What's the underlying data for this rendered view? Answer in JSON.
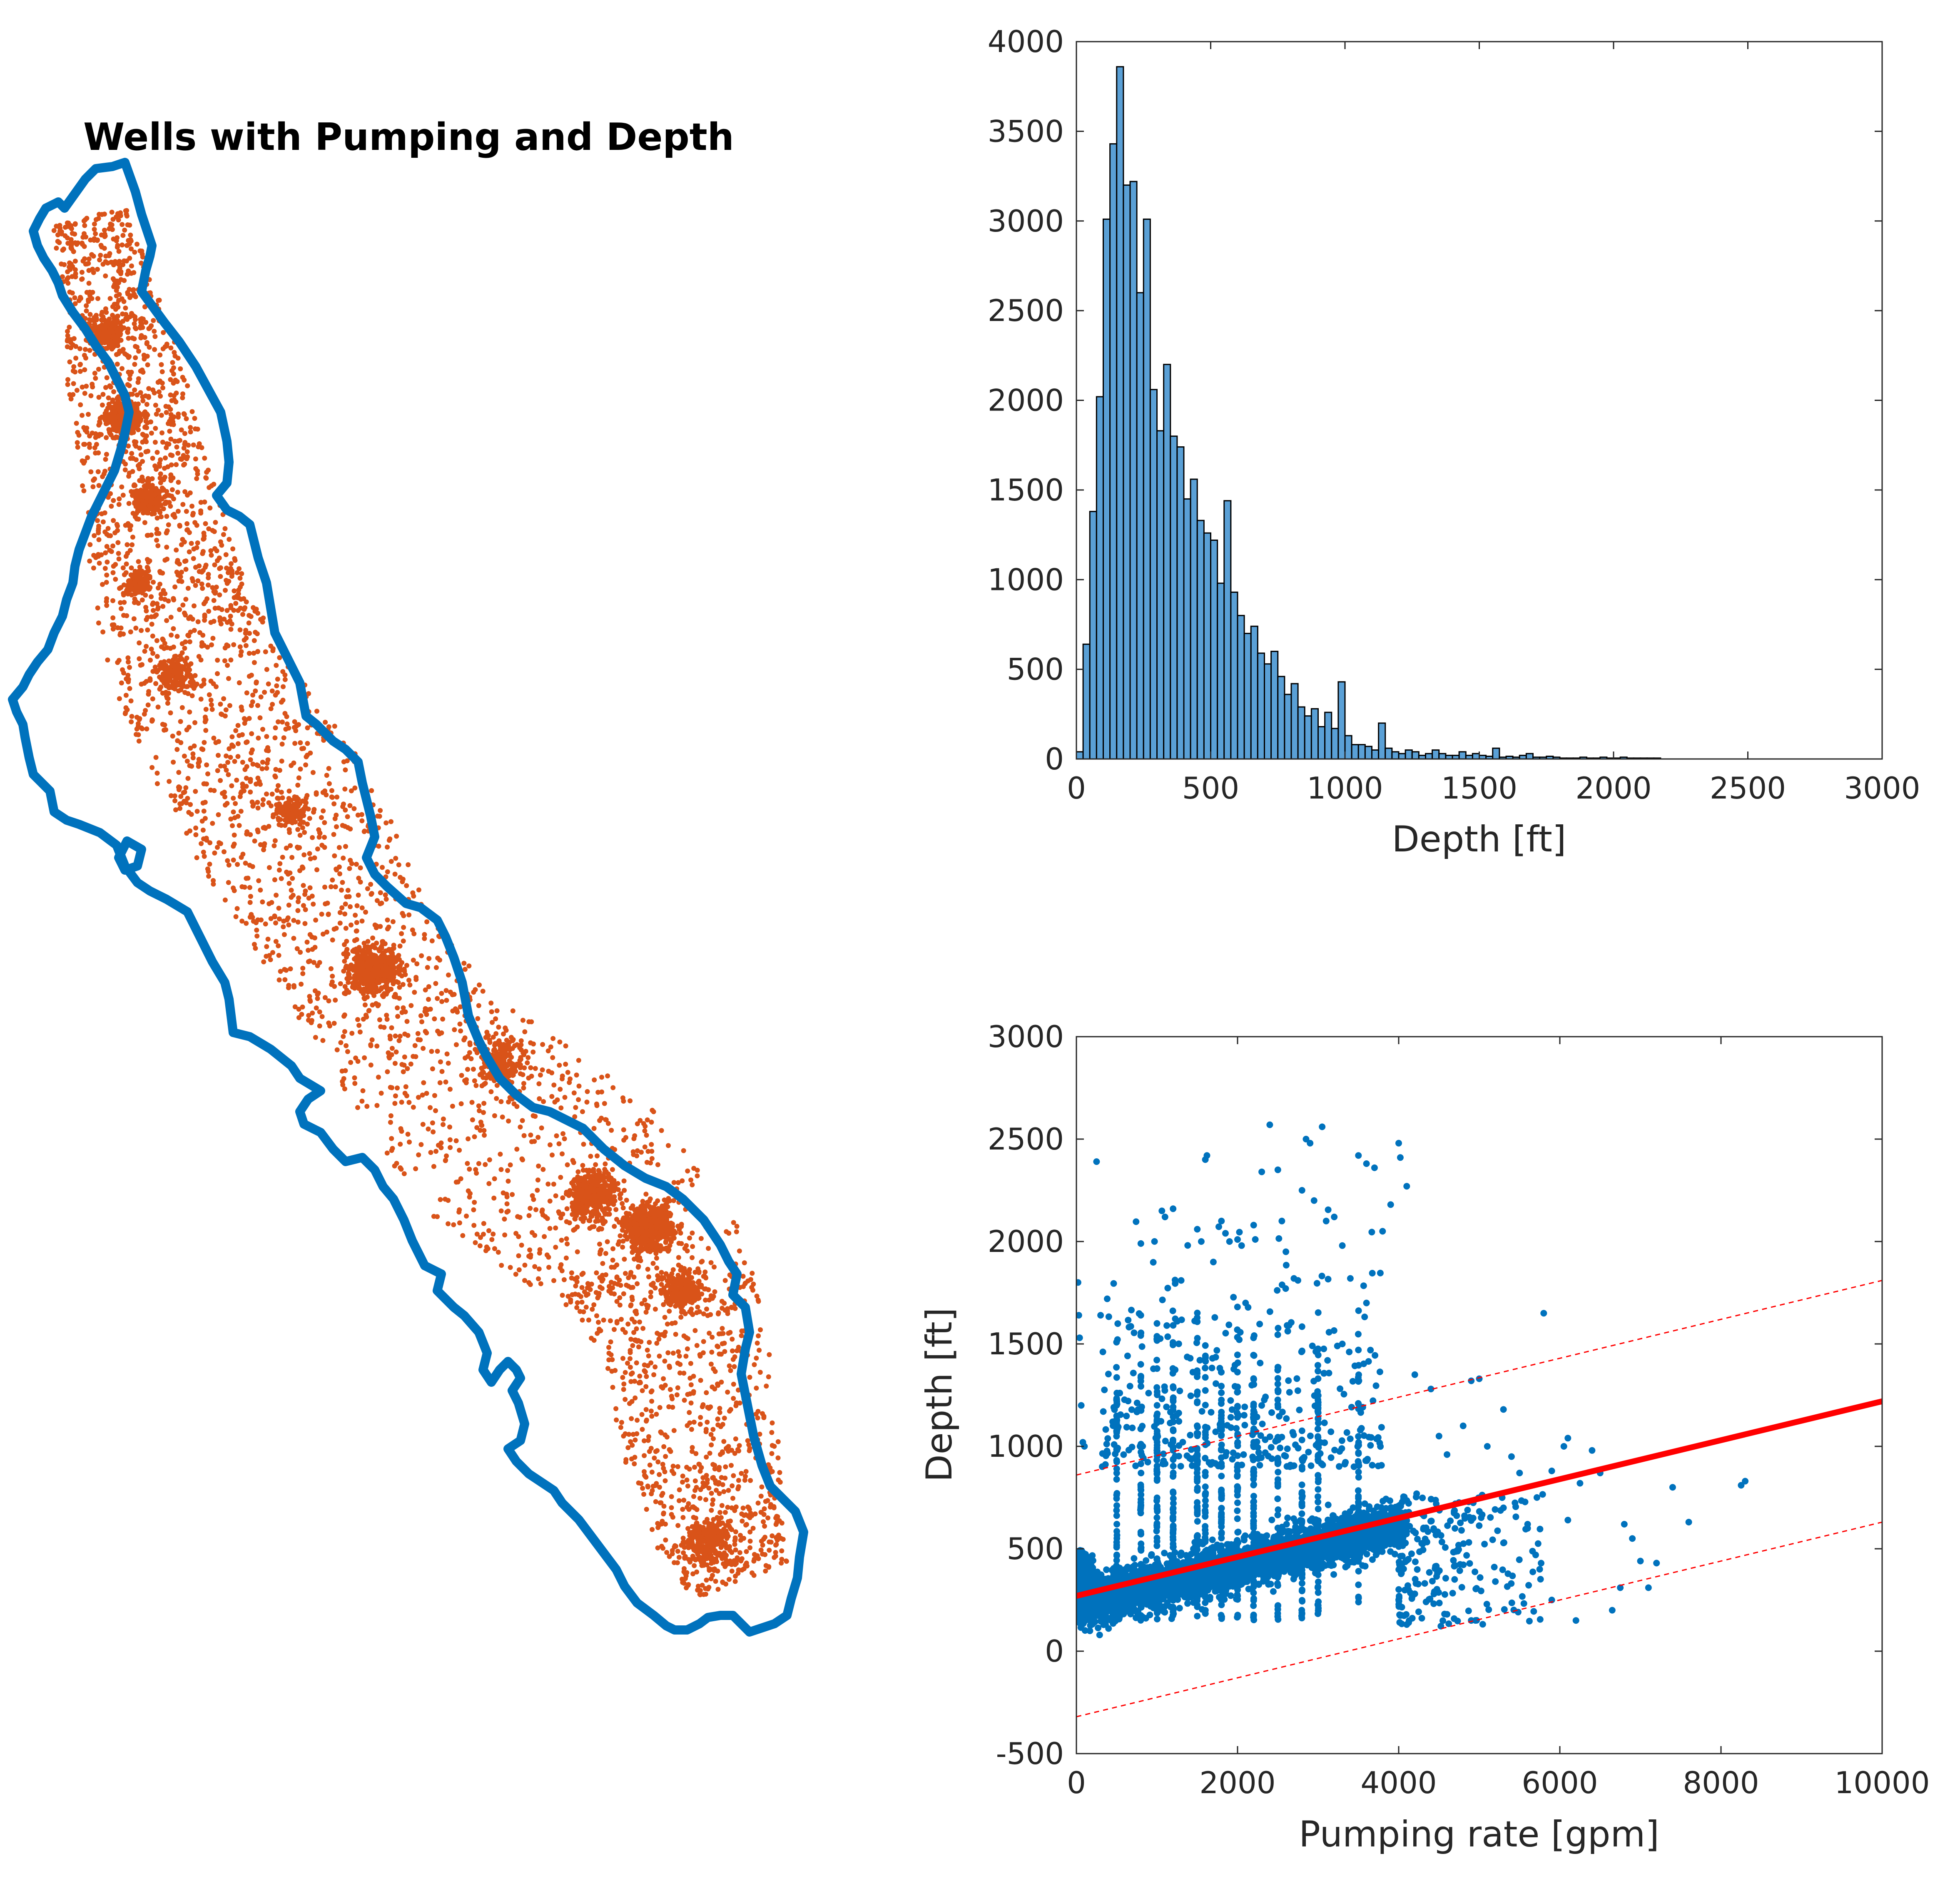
{
  "colors": {
    "background": "#ffffff",
    "outline": "#0072bd",
    "wells": "#d95319",
    "bars": "#5aa0d6",
    "bar_edge": "#000000",
    "scatter": "#0072bd",
    "fit": "#ff0000"
  },
  "chart_data": [
    {
      "type": "map",
      "title": "Wells with Pumping and Depth",
      "outline_label": "",
      "points_label": ""
    },
    {
      "type": "bar",
      "title": "",
      "xlabel": "Depth [ft]",
      "ylabel": "",
      "xlim": [
        0,
        3000
      ],
      "ylim": [
        0,
        4000
      ],
      "xticks": [
        "0",
        "500",
        "1000",
        "1500",
        "2000",
        "2500",
        "3000"
      ],
      "yticks": [
        "0",
        "500",
        "1000",
        "1500",
        "2000",
        "2500",
        "3000",
        "3500",
        "4000"
      ],
      "bin_width": 25,
      "bin_start": 0,
      "values": [
        40,
        640,
        1380,
        2020,
        3010,
        3430,
        3860,
        3200,
        3220,
        2600,
        3010,
        2060,
        1830,
        2200,
        1800,
        1740,
        1450,
        1560,
        1330,
        1260,
        1220,
        980,
        1440,
        930,
        800,
        700,
        740,
        590,
        530,
        600,
        460,
        360,
        420,
        290,
        240,
        280,
        180,
        260,
        170,
        430,
        130,
        80,
        80,
        70,
        50,
        200,
        60,
        40,
        30,
        50,
        40,
        20,
        30,
        50,
        30,
        20,
        20,
        40,
        20,
        30,
        20,
        15,
        60,
        10,
        15,
        10,
        20,
        30,
        10,
        10,
        15,
        10,
        5,
        5,
        5,
        10,
        5,
        5,
        10,
        5,
        5,
        10,
        5,
        5,
        5,
        5,
        5,
        0,
        0,
        0,
        0,
        0,
        0,
        0,
        0,
        0,
        0,
        0,
        0,
        0,
        0,
        0,
        0,
        0,
        0,
        0,
        0,
        0,
        0,
        0,
        0,
        0,
        0,
        0,
        0,
        0,
        0,
        0,
        0,
        0
      ]
    },
    {
      "type": "scatter",
      "title": "",
      "xlabel": "Pumping rate [gpm]",
      "ylabel": "Depth [ft]",
      "xlim": [
        0,
        10000
      ],
      "ylim": [
        -500,
        3000
      ],
      "xticks": [
        "0",
        "2000",
        "4000",
        "6000",
        "8000",
        "10000"
      ],
      "yticks": [
        "-500",
        "0",
        "500",
        "1000",
        "1500",
        "2000",
        "2500",
        "3000"
      ],
      "fit_line": {
        "intercept": 270,
        "slope": 0.095
      },
      "prediction_band": {
        "offset": 590
      },
      "points": [
        [
          20,
          1800
        ],
        [
          30,
          1640
        ],
        [
          40,
          1530
        ],
        [
          60,
          1200
        ],
        [
          80,
          1020
        ],
        [
          100,
          1000
        ],
        [
          250,
          2390
        ],
        [
          300,
          1640
        ],
        [
          450,
          1120
        ],
        [
          800,
          1990
        ],
        [
          1000,
          1600
        ],
        [
          1100,
          2120
        ],
        [
          1200,
          2160
        ],
        [
          1300,
          1810
        ],
        [
          1500,
          2060
        ],
        [
          1550,
          2000
        ],
        [
          1600,
          2400
        ],
        [
          1620,
          2420
        ],
        [
          1700,
          1900
        ],
        [
          1800,
          2100
        ],
        [
          1850,
          2040
        ],
        [
          1900,
          2000
        ],
        [
          2000,
          2010
        ],
        [
          2050,
          1980
        ],
        [
          2100,
          1700
        ],
        [
          2200,
          2080
        ],
        [
          2300,
          2340
        ],
        [
          2400,
          2570
        ],
        [
          2500,
          2350
        ],
        [
          2550,
          2100
        ],
        [
          2600,
          1950
        ],
        [
          2700,
          1820
        ],
        [
          2800,
          2250
        ],
        [
          2850,
          2500
        ],
        [
          2900,
          2480
        ],
        [
          2950,
          2200
        ],
        [
          3050,
          2560
        ],
        [
          3100,
          2100
        ],
        [
          3200,
          2120
        ],
        [
          3300,
          1980
        ],
        [
          3400,
          1820
        ],
        [
          3500,
          2420
        ],
        [
          3600,
          2380
        ],
        [
          3700,
          2360
        ],
        [
          4000,
          2480
        ],
        [
          4020,
          2410
        ],
        [
          4100,
          2270
        ],
        [
          3800,
          2050
        ],
        [
          3900,
          2180
        ],
        [
          3600,
          1700
        ],
        [
          3300,
          1500
        ],
        [
          4200,
          1350
        ],
        [
          4400,
          1280
        ],
        [
          4500,
          1050
        ],
        [
          4600,
          960
        ],
        [
          4800,
          1100
        ],
        [
          4900,
          1320
        ],
        [
          5000,
          1330
        ],
        [
          5100,
          1000
        ],
        [
          5300,
          1180
        ],
        [
          5400,
          950
        ],
        [
          5500,
          870
        ],
        [
          5600,
          620
        ],
        [
          5700,
          470
        ],
        [
          5750,
          400
        ],
        [
          5800,
          1650
        ],
        [
          5900,
          880
        ],
        [
          6050,
          1000
        ],
        [
          6100,
          1040
        ],
        [
          6250,
          820
        ],
        [
          6400,
          980
        ],
        [
          6500,
          870
        ],
        [
          6650,
          200
        ],
        [
          6750,
          310
        ],
        [
          6800,
          620
        ],
        [
          6900,
          550
        ],
        [
          7000,
          440
        ],
        [
          7100,
          310
        ],
        [
          7200,
          430
        ],
        [
          7400,
          800
        ],
        [
          7600,
          630
        ],
        [
          8250,
          810
        ],
        [
          8300,
          830
        ],
        [
          6200,
          150
        ],
        [
          5900,
          250
        ],
        [
          5200,
          340
        ],
        [
          4900,
          150
        ],
        [
          4600,
          180
        ],
        [
          4200,
          280
        ],
        [
          4100,
          130
        ],
        [
          6100,
          640
        ],
        [
          5600,
          600
        ],
        [
          5300,
          700
        ]
      ]
    }
  ]
}
